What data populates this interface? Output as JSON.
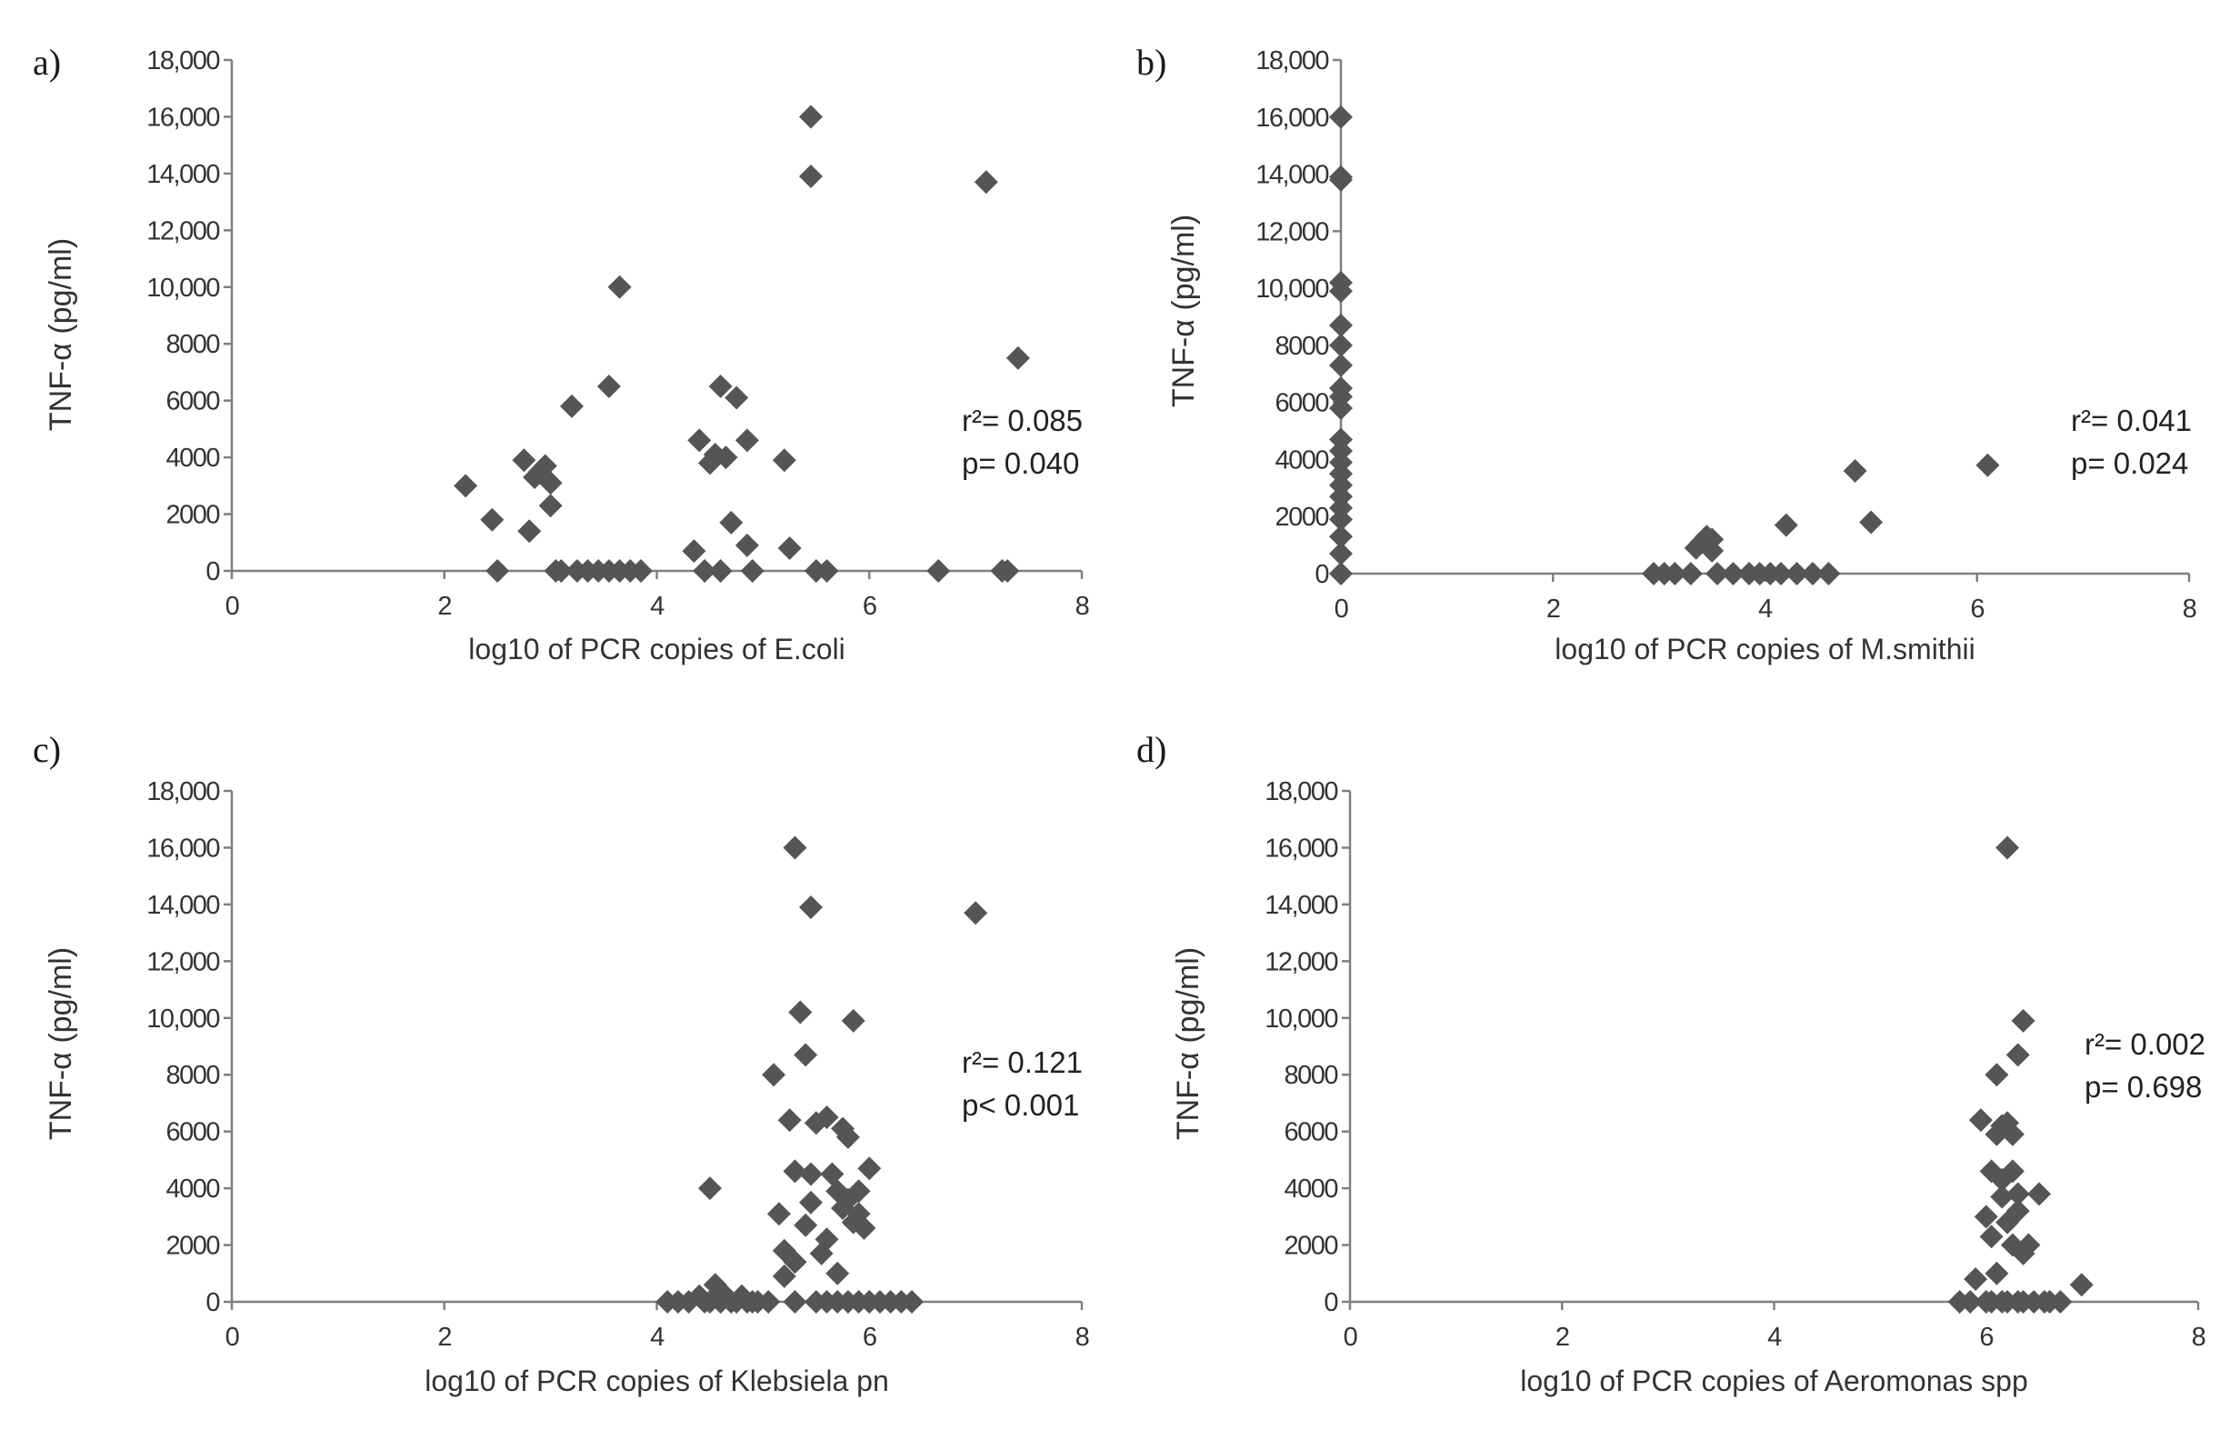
{
  "figure": {
    "marker_color": "#555555",
    "axis_color": "#7f7f7f"
  },
  "chart_data": [
    {
      "type": "scatter",
      "panel": "a)",
      "xlabel": "log10 of PCR copies of E.coli",
      "ylabel": "TNF-α (pg/ml)",
      "xlim": [
        0,
        8
      ],
      "ylim": [
        0,
        18000
      ],
      "xticks": [
        "0",
        "2",
        "4",
        "6",
        "8"
      ],
      "yticks": [
        "0",
        "2000",
        "4000",
        "6000",
        "8000",
        "10,000",
        "12,000",
        "14,000",
        "16,000",
        "18,000"
      ],
      "stats": [
        "r²= 0.085",
        "p= 0.040"
      ],
      "x": [
        2.2,
        2.45,
        2.5,
        2.75,
        2.8,
        2.85,
        2.9,
        2.95,
        3.0,
        3.0,
        3.05,
        3.1,
        3.2,
        3.25,
        3.35,
        3.45,
        3.55,
        3.55,
        3.65,
        3.65,
        3.75,
        3.85,
        4.35,
        4.4,
        4.45,
        4.5,
        4.55,
        4.6,
        4.6,
        4.65,
        4.7,
        4.75,
        4.85,
        4.85,
        4.9,
        5.2,
        5.25,
        5.45,
        5.45,
        5.5,
        5.6,
        6.65,
        7.1,
        7.25,
        7.3,
        7.4
      ],
      "y": [
        3000,
        1800,
        0,
        3900,
        1400,
        3300,
        3500,
        3700,
        3100,
        2300,
        0,
        0,
        5800,
        0,
        0,
        0,
        6500,
        0,
        10000,
        0,
        0,
        0,
        700,
        4600,
        0,
        3800,
        4100,
        6500,
        0,
        4000,
        1700,
        6100,
        4600,
        900,
        0,
        3900,
        800,
        16000,
        13900,
        0,
        0,
        0,
        13700,
        0,
        0,
        7500
      ]
    },
    {
      "type": "scatter",
      "panel": "b)",
      "xlabel": "log10 of PCR copies of M.smithii",
      "ylabel": "TNF-α (pg/ml)",
      "xlim": [
        0,
        8
      ],
      "ylim": [
        0,
        18000
      ],
      "xticks": [
        "0",
        "2",
        "4",
        "6",
        "8"
      ],
      "yticks": [
        "0",
        "2000",
        "4000",
        "6000",
        "8000",
        "10,000",
        "12,000",
        "14,000",
        "16,000",
        "18,000"
      ],
      "stats": [
        "r²= 0.041",
        "p= 0.024"
      ],
      "x": [
        0,
        0,
        0,
        0,
        0,
        0,
        0,
        0,
        0,
        0,
        0,
        0,
        0,
        0,
        0,
        0,
        0,
        0,
        0,
        0,
        0,
        0,
        2.95,
        3.05,
        3.15,
        3.3,
        3.35,
        3.4,
        3.45,
        3.5,
        3.5,
        3.55,
        3.7,
        3.85,
        3.95,
        4.05,
        4.15,
        4.2,
        4.3,
        4.45,
        4.6,
        4.85,
        5.0,
        6.1
      ],
      "y": [
        16000,
        13900,
        13800,
        10200,
        9900,
        8700,
        8000,
        7300,
        6500,
        6200,
        5800,
        4700,
        4300,
        3900,
        3500,
        3100,
        2700,
        2300,
        1900,
        1300,
        700,
        0,
        0,
        0,
        0,
        0,
        900,
        1100,
        1300,
        1200,
        800,
        0,
        0,
        0,
        0,
        0,
        0,
        1700,
        0,
        0,
        0,
        3600,
        1800,
        3800
      ]
    },
    {
      "type": "scatter",
      "panel": "c)",
      "xlabel": "log10 of PCR copies of Klebsiela pn",
      "ylabel": "TNF-α (pg/ml)",
      "xlim": [
        0,
        8
      ],
      "ylim": [
        0,
        18000
      ],
      "xticks": [
        "0",
        "2",
        "4",
        "6",
        "8"
      ],
      "yticks": [
        "0",
        "2000",
        "4000",
        "6000",
        "8000",
        "10,000",
        "12,000",
        "14,000",
        "16,000",
        "18,000"
      ],
      "stats": [
        "r²= 0.121",
        "p< 0.001"
      ],
      "x": [
        4.1,
        4.2,
        4.3,
        4.4,
        4.45,
        4.5,
        4.55,
        4.6,
        4.65,
        4.7,
        4.75,
        4.8,
        4.85,
        4.9,
        4.95,
        4.5,
        4.6,
        5.05,
        5.1,
        5.15,
        5.2,
        5.2,
        5.25,
        5.3,
        5.3,
        5.3,
        5.35,
        5.4,
        5.4,
        5.45,
        5.45,
        5.45,
        5.5,
        5.55,
        5.6,
        5.6,
        5.65,
        5.7,
        5.7,
        5.75,
        5.75,
        5.8,
        5.8,
        5.85,
        5.85,
        5.9,
        5.9,
        5.95,
        6.0,
        6.0,
        5.6,
        5.7,
        5.8,
        5.9,
        6.0,
        6.1,
        6.2,
        6.3,
        6.4,
        5.3,
        5.5,
        7.0
      ],
      "y": [
        0,
        0,
        0,
        200,
        0,
        4000,
        600,
        0,
        200,
        0,
        0,
        200,
        0,
        0,
        0,
        0,
        0,
        0,
        8000,
        3100,
        900,
        1800,
        6400,
        16000,
        4600,
        1400,
        10200,
        8700,
        2700,
        13900,
        4500,
        3500,
        6300,
        1700,
        6500,
        2200,
        4500,
        3900,
        1000,
        6100,
        3300,
        5800,
        3600,
        2800,
        9900,
        3900,
        3100,
        2600,
        4700,
        0,
        0,
        0,
        0,
        0,
        0,
        0,
        0,
        0,
        0,
        0,
        0,
        13700
      ]
    },
    {
      "type": "scatter",
      "panel": "d)",
      "xlabel": "log10 of PCR copies of Aeromonas spp",
      "ylabel": "TNF-α (pg/ml)",
      "xlim": [
        0,
        8
      ],
      "ylim": [
        0,
        18000
      ],
      "xticks": [
        "0",
        "2",
        "4",
        "6",
        "8"
      ],
      "yticks": [
        "0",
        "2000",
        "4000",
        "6000",
        "8000",
        "10,000",
        "12,000",
        "14,000",
        "16,000",
        "18,000"
      ],
      "stats": [
        "r²= 0.002",
        "p= 0.698"
      ],
      "x": [
        5.75,
        5.85,
        5.9,
        5.95,
        6.0,
        6.0,
        6.05,
        6.05,
        6.05,
        6.1,
        6.1,
        6.1,
        6.15,
        6.15,
        6.15,
        6.15,
        6.2,
        6.2,
        6.2,
        6.2,
        6.25,
        6.25,
        6.25,
        6.3,
        6.3,
        6.3,
        6.3,
        6.35,
        6.35,
        6.35,
        6.4,
        6.45,
        6.5,
        6.55,
        6.6,
        6.7,
        6.9
      ],
      "y": [
        0,
        0,
        800,
        6400,
        0,
        3000,
        4600,
        2300,
        0,
        8000,
        5900,
        1000,
        6200,
        4300,
        3700,
        0,
        16000,
        6300,
        2800,
        0,
        5900,
        4600,
        2000,
        3800,
        3200,
        8700,
        0,
        9900,
        1700,
        0,
        2000,
        0,
        3800,
        0,
        0,
        0,
        600
      ]
    }
  ]
}
